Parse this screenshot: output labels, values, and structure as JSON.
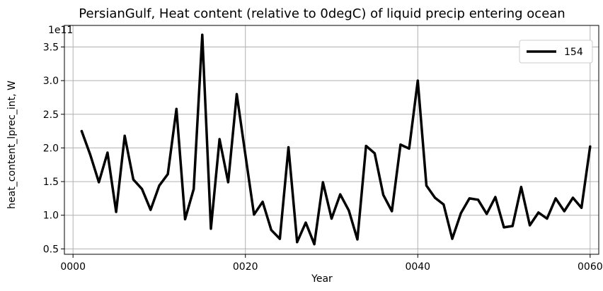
{
  "chart_data": {
    "type": "line",
    "title": "PersianGulf, Heat content (relative to 0degC) of liquid precip entering ocean",
    "xlabel": "Year",
    "ylabel": "heat_content_lprec_int, W",
    "offset_label": "1e11",
    "xlim": [
      -1,
      61
    ],
    "ylim": [
      0.42,
      3.82
    ],
    "xticks": [
      {
        "value": 0,
        "label": "0000"
      },
      {
        "value": 20,
        "label": "0020"
      },
      {
        "value": 40,
        "label": "0040"
      },
      {
        "value": 60,
        "label": "0060"
      }
    ],
    "yticks": [
      {
        "value": 0.5,
        "label": "0.5"
      },
      {
        "value": 1.0,
        "label": "1.0"
      },
      {
        "value": 1.5,
        "label": "1.5"
      },
      {
        "value": 2.0,
        "label": "2.0"
      },
      {
        "value": 2.5,
        "label": "2.5"
      },
      {
        "value": 3.0,
        "label": "3.0"
      },
      {
        "value": 3.5,
        "label": "3.5"
      }
    ],
    "grid": true,
    "legend_position": "top-right",
    "series": [
      {
        "name": "154",
        "color": "#000000",
        "x": [
          1,
          2,
          3,
          4,
          5,
          6,
          7,
          8,
          9,
          10,
          11,
          12,
          13,
          14,
          15,
          16,
          17,
          18,
          19,
          20,
          21,
          22,
          23,
          24,
          25,
          26,
          27,
          28,
          29,
          30,
          31,
          32,
          33,
          34,
          35,
          36,
          37,
          38,
          39,
          40,
          41,
          42,
          43,
          44,
          45,
          46,
          47,
          48,
          49,
          50,
          51,
          52,
          53,
          54,
          55,
          56,
          57,
          58,
          59,
          60
        ],
        "values": [
          2.25,
          1.9,
          1.49,
          1.93,
          1.05,
          2.18,
          1.53,
          1.39,
          1.08,
          1.44,
          1.61,
          2.58,
          0.94,
          1.39,
          3.68,
          0.8,
          2.13,
          1.49,
          2.8,
          1.9,
          1.01,
          1.2,
          0.78,
          0.65,
          2.01,
          0.6,
          0.89,
          0.57,
          1.49,
          0.95,
          1.31,
          1.07,
          0.64,
          2.03,
          1.92,
          1.3,
          1.06,
          2.05,
          1.99,
          3.0,
          1.44,
          1.26,
          1.16,
          0.65,
          1.03,
          1.25,
          1.23,
          1.02,
          1.27,
          0.82,
          0.84,
          1.42,
          0.85,
          1.04,
          0.95,
          1.25,
          1.06,
          1.26,
          1.11,
          2.02
        ]
      }
    ]
  }
}
